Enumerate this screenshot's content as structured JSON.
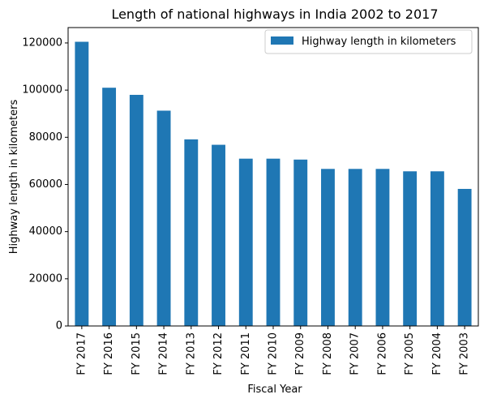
{
  "chart_data": {
    "type": "bar",
    "title": "Length of national highways in India 2002 to 2017",
    "xlabel": "Fiscal Year",
    "ylabel": "Highway length in kilometers",
    "categories": [
      "FY 2017",
      "FY 2016",
      "FY 2015",
      "FY 2014",
      "FY 2013",
      "FY 2012",
      "FY 2011",
      "FY 2010",
      "FY 2009",
      "FY 2008",
      "FY 2007",
      "FY 2006",
      "FY 2005",
      "FY 2004",
      "FY 2003"
    ],
    "series": [
      {
        "name": "Highway length in kilometers",
        "color": "#1f77b4",
        "values": [
          120493,
          101011,
          97991,
          91287,
          79116,
          76818,
          70934,
          70934,
          70548,
          66590,
          66590,
          66590,
          65569,
          65569,
          58112
        ]
      }
    ],
    "yticks": [
      0,
      20000,
      40000,
      60000,
      80000,
      100000,
      120000
    ],
    "ylim": [
      0,
      126517
    ],
    "legend_position": "top-right",
    "grid": false
  }
}
